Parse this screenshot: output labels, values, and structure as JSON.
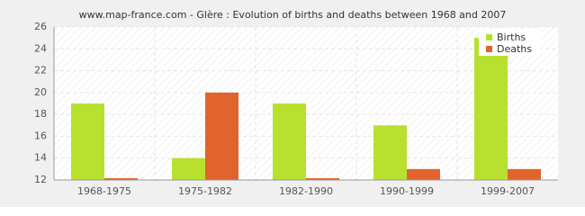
{
  "chart_data": {
    "type": "bar",
    "title": "www.map-france.com - Glère : Evolution of births and deaths between 1968 and 2007",
    "categories": [
      "1968-1975",
      "1975-1982",
      "1982-1990",
      "1990-1999",
      "1999-2007"
    ],
    "series": [
      {
        "name": "Births",
        "color": "#b8e02e",
        "values": [
          19,
          14,
          19,
          17,
          25
        ]
      },
      {
        "name": "Deaths",
        "color": "#e0642c",
        "values": [
          12,
          20,
          12,
          13,
          13
        ]
      }
    ],
    "ylim": [
      12,
      26
    ],
    "yticks": [
      12,
      14,
      16,
      18,
      20,
      22,
      24,
      26
    ],
    "grid": true,
    "legend": "top-right"
  }
}
